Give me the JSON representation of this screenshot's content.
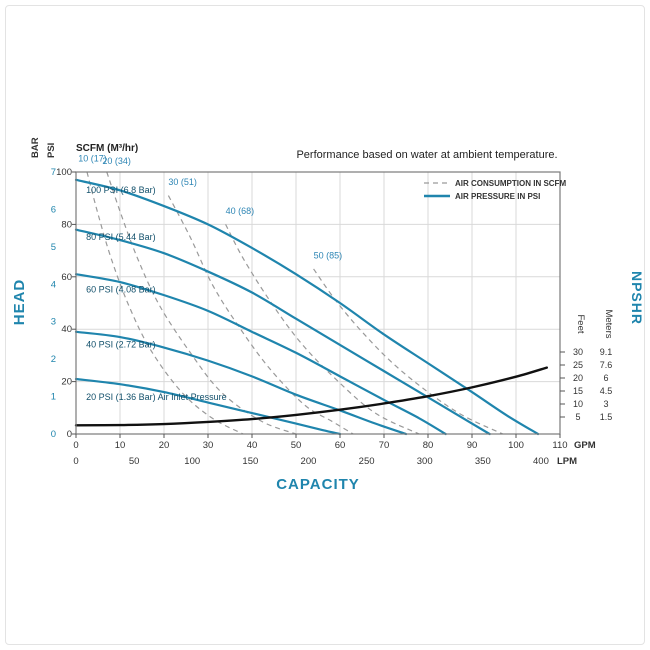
{
  "page": {
    "background": "#ffffff"
  },
  "chart_data": {
    "type": "line",
    "title": "Performance based on water at ambient temperature.",
    "x_axis_title": "CAPACITY",
    "left_axis_title": "HEAD",
    "right_axis_title": "NPSHR",
    "scfm_header": "SCFM (M³/hr)",
    "colors": {
      "pressure": "#1f85ad",
      "air": "#9a9a9a",
      "npshr": "#111111",
      "grid": "#d9d9d9",
      "border": "#7a7a7a",
      "text": "#333333",
      "curve_label": "#12506b",
      "air_label": "#2e86b5",
      "accent": "#1f85ad"
    },
    "axes": {
      "bar": {
        "label": "BAR",
        "ticks": [
          0,
          1,
          2,
          3,
          4,
          5,
          6,
          7
        ],
        "range": [
          0,
          7
        ]
      },
      "psi": {
        "label": "PSI",
        "ticks": [
          0,
          20,
          40,
          60,
          80,
          100
        ],
        "range": [
          0,
          100
        ]
      },
      "gpm": {
        "label": "GPM",
        "ticks": [
          0,
          10,
          20,
          30,
          40,
          50,
          60,
          70,
          80,
          90,
          100,
          110
        ],
        "range": [
          0,
          110
        ]
      },
      "lpm": {
        "label": "LPM",
        "ticks": [
          0,
          50,
          100,
          150,
          200,
          250,
          300,
          350,
          400
        ]
      },
      "feet": {
        "label": "Feet",
        "ticks": [
          30,
          25,
          20,
          15,
          10,
          5
        ]
      },
      "meters": {
        "label": "Meters",
        "ticks": [
          9.1,
          7.6,
          6,
          4.5,
          3,
          1.5
        ]
      }
    },
    "legend": {
      "items": [
        {
          "label": "AIR CONSUMPTION IN SCFM",
          "style": "dashed"
        },
        {
          "label": "AIR PRESSURE IN PSI",
          "style": "solid"
        }
      ]
    },
    "pressure_series": [
      {
        "name": "100psi",
        "label": "100 PSI (6.8 Bar)",
        "label_at": [
          2.3,
          92
        ],
        "points": [
          [
            0,
            97
          ],
          [
            10,
            93
          ],
          [
            20,
            87
          ],
          [
            30,
            80
          ],
          [
            40,
            71
          ],
          [
            50,
            61
          ],
          [
            60,
            50
          ],
          [
            70,
            38
          ],
          [
            80,
            27
          ],
          [
            90,
            16
          ],
          [
            98,
            7
          ],
          [
            105,
            0
          ]
        ]
      },
      {
        "name": "80psi",
        "label": "80 PSI (5.44 Bar)",
        "label_at": [
          2.3,
          74
        ],
        "points": [
          [
            0,
            78
          ],
          [
            10,
            74
          ],
          [
            20,
            69
          ],
          [
            30,
            62
          ],
          [
            40,
            54
          ],
          [
            50,
            44
          ],
          [
            60,
            34
          ],
          [
            70,
            24
          ],
          [
            80,
            14
          ],
          [
            88,
            6
          ],
          [
            94,
            0
          ]
        ]
      },
      {
        "name": "60psi",
        "label": "60 PSI (4.08 Bar)",
        "label_at": [
          2.3,
          54
        ],
        "points": [
          [
            0,
            61
          ],
          [
            10,
            58
          ],
          [
            20,
            53
          ],
          [
            30,
            47
          ],
          [
            40,
            39
          ],
          [
            50,
            31
          ],
          [
            60,
            22
          ],
          [
            70,
            13
          ],
          [
            78,
            6
          ],
          [
            84,
            0
          ]
        ]
      },
      {
        "name": "40psi",
        "label": "40 PSI (2.72 Bar)",
        "label_at": [
          2.3,
          33
        ],
        "points": [
          [
            0,
            39
          ],
          [
            10,
            37
          ],
          [
            20,
            33
          ],
          [
            30,
            28
          ],
          [
            40,
            22
          ],
          [
            50,
            15
          ],
          [
            60,
            9
          ],
          [
            68,
            4
          ],
          [
            75,
            0
          ]
        ]
      },
      {
        "name": "20psi",
        "label": "20 PSI (1.36 Bar) Air Inlet Pressure",
        "label_at": [
          2.3,
          13
        ],
        "points": [
          [
            0,
            21
          ],
          [
            10,
            19
          ],
          [
            20,
            16
          ],
          [
            30,
            12
          ],
          [
            40,
            8
          ],
          [
            50,
            4
          ],
          [
            56,
            1.5
          ],
          [
            60,
            0
          ]
        ]
      }
    ],
    "air_series": [
      {
        "name": "10scfm",
        "label": "10 (17)",
        "label_at": [
          0.5,
          104
        ],
        "points": [
          [
            2.5,
            100
          ],
          [
            5,
            84
          ],
          [
            8,
            67
          ],
          [
            12,
            49
          ],
          [
            17,
            32
          ],
          [
            24,
            16
          ],
          [
            31,
            6
          ],
          [
            38,
            0
          ]
        ]
      },
      {
        "name": "20scfm",
        "label": "20 (34)",
        "label_at": [
          6,
          103
        ],
        "points": [
          [
            7,
            100
          ],
          [
            10,
            85
          ],
          [
            14,
            67
          ],
          [
            19,
            49
          ],
          [
            26,
            31
          ],
          [
            33,
            16
          ],
          [
            42,
            5
          ],
          [
            50,
            0
          ]
        ]
      },
      {
        "name": "30scfm",
        "label": "30 (51)",
        "label_at": [
          21,
          95
        ],
        "points": [
          [
            21,
            91
          ],
          [
            26,
            75
          ],
          [
            31,
            57
          ],
          [
            37,
            41
          ],
          [
            44,
            25
          ],
          [
            52,
            11
          ],
          [
            58,
            5
          ],
          [
            63,
            0
          ]
        ]
      },
      {
        "name": "40scfm",
        "label": "40 (68)",
        "label_at": [
          34,
          84
        ],
        "points": [
          [
            34,
            80
          ],
          [
            38,
            67
          ],
          [
            44,
            51
          ],
          [
            51,
            35
          ],
          [
            59,
            21
          ],
          [
            68,
            8
          ],
          [
            78,
            0
          ]
        ]
      },
      {
        "name": "50scfm",
        "label": "50 (85)",
        "label_at": [
          54,
          67
        ],
        "points": [
          [
            54,
            63
          ],
          [
            59,
            51
          ],
          [
            65,
            39
          ],
          [
            72,
            27
          ],
          [
            80,
            16
          ],
          [
            88,
            7
          ],
          [
            97,
            0
          ]
        ]
      }
    ],
    "npshr_series": {
      "name": "npshr",
      "units": "feet",
      "points": [
        [
          0,
          1.8
        ],
        [
          10,
          1.9
        ],
        [
          20,
          2.3
        ],
        [
          30,
          3.1
        ],
        [
          40,
          4.2
        ],
        [
          50,
          5.8
        ],
        [
          60,
          7.8
        ],
        [
          70,
          10.2
        ],
        [
          80,
          13
        ],
        [
          90,
          16.4
        ],
        [
          100,
          20.5
        ],
        [
          107,
          24
        ]
      ]
    }
  }
}
